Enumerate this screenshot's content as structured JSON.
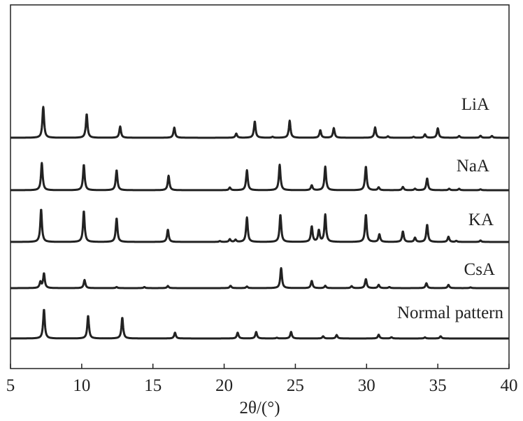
{
  "chart_data": {
    "type": "line",
    "xlabel": "2θ/(°)",
    "ylabel": "",
    "xlim": [
      5,
      40
    ],
    "xticks": [
      5,
      10,
      15,
      20,
      25,
      30,
      35,
      40
    ],
    "grid": false,
    "legend": "none",
    "line_color": "#222222",
    "series": [
      {
        "name": "LiA",
        "peaks": [
          [
            7.3,
            17
          ],
          [
            10.35,
            13
          ],
          [
            12.7,
            6.2
          ],
          [
            16.5,
            5.6
          ],
          [
            20.85,
            2.3
          ],
          [
            22.15,
            9
          ],
          [
            23.4,
            0.5
          ],
          [
            24.6,
            9.4
          ],
          [
            26.75,
            4.2
          ],
          [
            27.7,
            5.3
          ],
          [
            30.6,
            5.7
          ],
          [
            31.5,
            0.8
          ],
          [
            33.3,
            0.5
          ],
          [
            34.1,
            1.9
          ],
          [
            35,
            5.2
          ],
          [
            36.5,
            1
          ],
          [
            38,
            1.1
          ],
          [
            38.8,
            1
          ]
        ]
      },
      {
        "name": "NaA",
        "peaks": [
          [
            7.2,
            15
          ],
          [
            10.15,
            14
          ],
          [
            12.45,
            11
          ],
          [
            16.1,
            8
          ],
          [
            20.4,
            1.5
          ],
          [
            21.6,
            11
          ],
          [
            23.9,
            14
          ],
          [
            26.15,
            2.7
          ],
          [
            27.1,
            13
          ],
          [
            29.95,
            13
          ],
          [
            30.85,
            1.6
          ],
          [
            32.55,
            1.8
          ],
          [
            33.4,
            0.8
          ],
          [
            34.25,
            6.5
          ],
          [
            35.8,
            0.8
          ],
          [
            36.5,
            0.8
          ],
          [
            38,
            0.5
          ]
        ]
      },
      {
        "name": "KA",
        "peaks": [
          [
            7.15,
            18
          ],
          [
            10.15,
            17
          ],
          [
            12.45,
            13
          ],
          [
            16.05,
            6.8
          ],
          [
            19.7,
            0.5
          ],
          [
            20.4,
            1.5
          ],
          [
            20.8,
            1.2
          ],
          [
            21.6,
            13.5
          ],
          [
            23.95,
            15
          ],
          [
            26.15,
            8.5
          ],
          [
            26.65,
            6.3
          ],
          [
            27.1,
            15
          ],
          [
            29.95,
            15
          ],
          [
            30.9,
            4.2
          ],
          [
            32.55,
            5.8
          ],
          [
            33.4,
            2.3
          ],
          [
            34.25,
            9.5
          ],
          [
            35.75,
            2.9
          ],
          [
            36.3,
            0.6
          ],
          [
            38,
            0.8
          ]
        ]
      },
      {
        "name": "CsA",
        "peaks": [
          [
            7.1,
            3.3
          ],
          [
            7.35,
            8
          ],
          [
            10.2,
            4.5
          ],
          [
            12.45,
            0.6
          ],
          [
            14.4,
            0.6
          ],
          [
            16.05,
            1.2
          ],
          [
            20.45,
            1.3
          ],
          [
            21.6,
            0.9
          ],
          [
            24,
            11
          ],
          [
            26.15,
            4
          ],
          [
            27.1,
            1.3
          ],
          [
            28.95,
            1.1
          ],
          [
            29.95,
            5
          ],
          [
            30.85,
            1.8
          ],
          [
            31.6,
            0.6
          ],
          [
            34.2,
            2.7
          ],
          [
            35.75,
            1.8
          ],
          [
            37.3,
            0.4
          ]
        ]
      },
      {
        "name": "Normal pattern",
        "peaks": [
          [
            7.35,
            16
          ],
          [
            10.45,
            12.5
          ],
          [
            12.85,
            11.5
          ],
          [
            16.55,
            3.2
          ],
          [
            20.95,
            3.2
          ],
          [
            22.25,
            3.6
          ],
          [
            23.7,
            0.4
          ],
          [
            24.7,
            3.6
          ],
          [
            26.95,
            1.2
          ],
          [
            27.9,
            1.9
          ],
          [
            30.85,
            2.1
          ],
          [
            31.75,
            0.7
          ],
          [
            34.1,
            0.6
          ],
          [
            35.2,
            1.2
          ]
        ]
      }
    ]
  }
}
